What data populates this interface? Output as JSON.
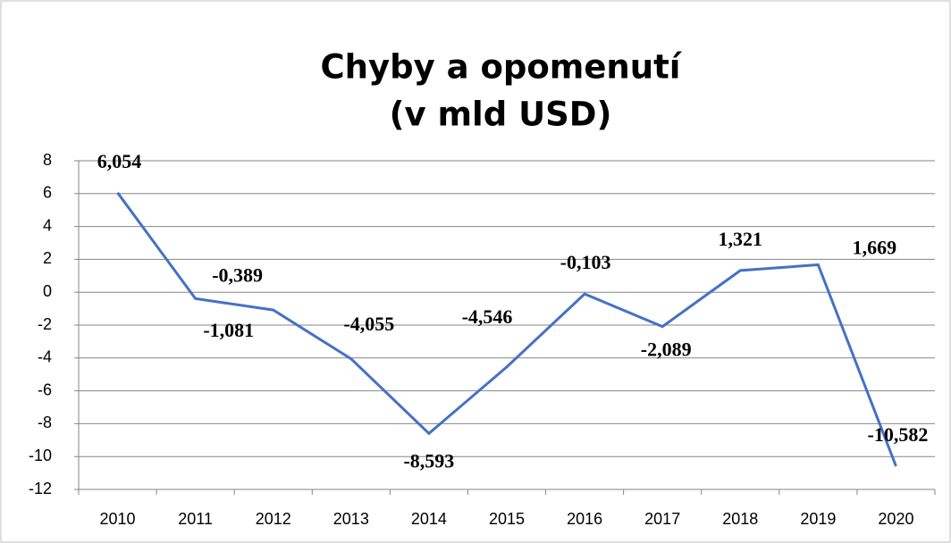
{
  "chart_data": {
    "type": "line",
    "title": "Chyby a opomenutí",
    "subtitle": "(v mld USD)",
    "categories": [
      "2010",
      "2011",
      "2012",
      "2013",
      "2014",
      "2015",
      "2016",
      "2017",
      "2018",
      "2019",
      "2020"
    ],
    "series": [
      {
        "name": "Chyby a opomenutí",
        "color": "#4472c4",
        "values": [
          6.054,
          -0.389,
          -1.081,
          -4.055,
          -8.593,
          -4.546,
          -0.103,
          -2.089,
          1.321,
          1.669,
          -10.582
        ],
        "value_labels": [
          "6,054",
          "-0,389",
          "-1,081",
          "-4,055",
          "-8,593",
          "-4,546",
          "-0,103",
          "-2,089",
          "1,321",
          "1,669",
          "-10,582"
        ]
      }
    ],
    "ylim": [
      -12,
      8
    ],
    "yticks": [
      -12,
      -10,
      -8,
      -6,
      -4,
      -2,
      0,
      2,
      4,
      6,
      8
    ],
    "grid": true
  }
}
